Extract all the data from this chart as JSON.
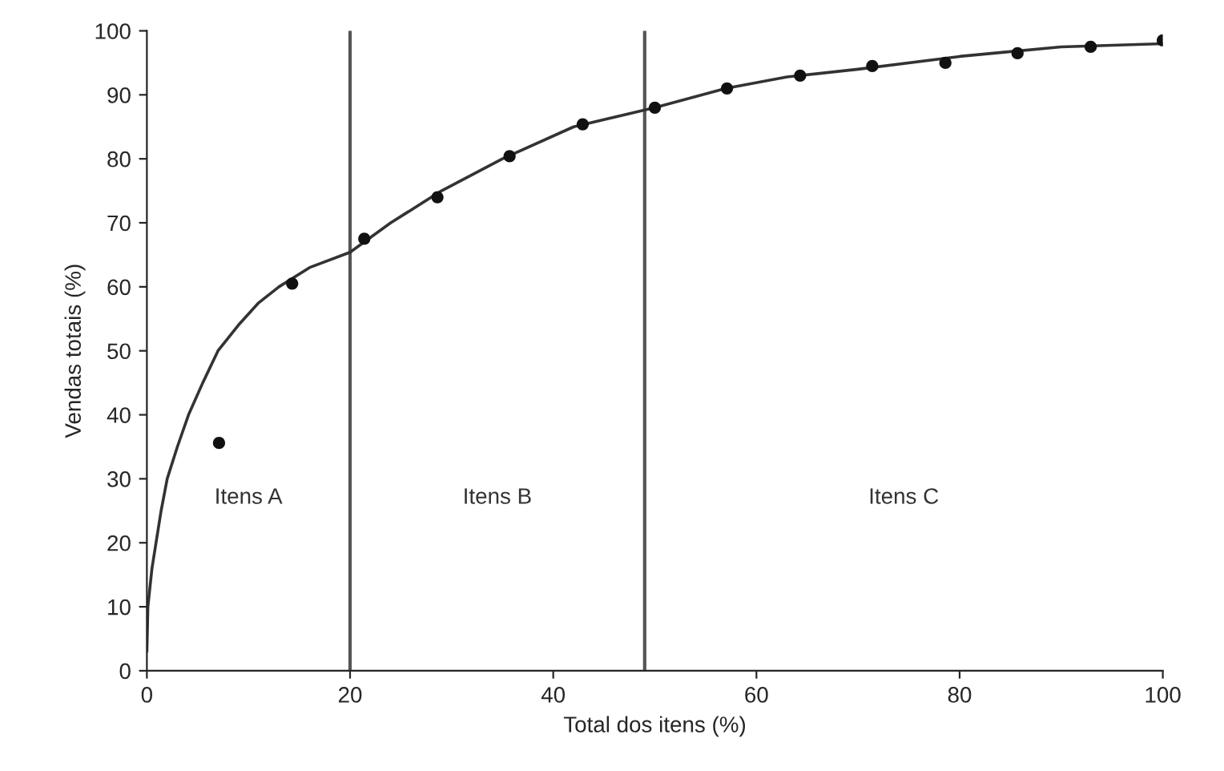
{
  "chart_data": {
    "type": "scatter",
    "xlabel": "Total dos itens (%)",
    "ylabel": "Vendas totais (%)",
    "x": [
      7.1,
      14.3,
      21.4,
      28.6,
      35.7,
      42.9,
      50,
      57.1,
      64.3,
      71.4,
      78.6,
      85.7,
      92.9,
      100
    ],
    "series": [
      {
        "color": "#111111",
        "marker": "circle",
        "values": [
          35.6,
          60.5,
          67.5,
          74,
          80.4,
          85.4,
          88,
          91,
          93,
          94.5,
          95,
          96.5,
          97.5,
          98.5
        ]
      },
      {
        "type": "line",
        "color": "#333333",
        "line_style": "solid",
        "marker": "none",
        "x": [
          0,
          0.1,
          0.5,
          0.9,
          1.4,
          2,
          3,
          4.1,
          5.5,
          7,
          9,
          11,
          13,
          16,
          20,
          24,
          29,
          35,
          42,
          50,
          57,
          63,
          70,
          80,
          90,
          100
        ],
        "values": [
          3,
          10,
          16,
          20,
          25,
          30,
          35,
          40,
          45,
          50,
          54,
          57.5,
          60,
          63,
          65.4,
          70,
          75,
          80,
          85,
          88,
          91,
          92.8,
          94,
          96,
          97.5,
          98
        ]
      }
    ],
    "ref_lines": [
      {
        "axis": "x",
        "value": 20,
        "color": "#555555"
      },
      {
        "axis": "x",
        "value": 49,
        "color": "#555555"
      }
    ],
    "annotations": [
      "Itens A",
      "Itens B",
      "Itens C"
    ],
    "xlim": [
      0,
      100
    ],
    "ylim": [
      0,
      100
    ],
    "xticks": [
      0,
      20,
      40,
      60,
      80,
      100
    ],
    "yticks": [
      0,
      10,
      20,
      30,
      40,
      50,
      60,
      70,
      80,
      90,
      100
    ],
    "grid": false
  }
}
